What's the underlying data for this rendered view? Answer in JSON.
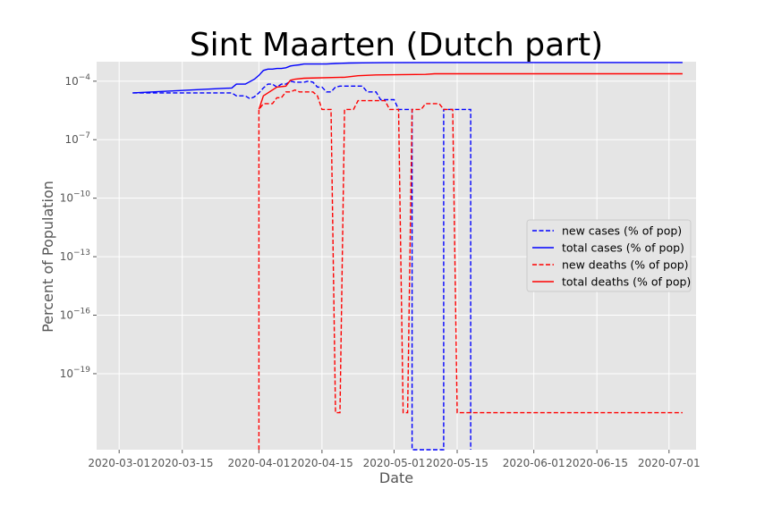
{
  "chart_data": {
    "type": "line",
    "title": "Sint Maarten (Dutch part)",
    "xlabel": "Date",
    "ylabel": "Percent of Population",
    "yscale": "log",
    "ylim_exp": [
      -22.9,
      -3.0
    ],
    "xlim": [
      "2020-02-25",
      "2020-07-07"
    ],
    "grid": true,
    "legend_position": "center-right",
    "x_ticks": [
      "2020-03-01",
      "2020-03-15",
      "2020-04-01",
      "2020-04-15",
      "2020-05-01",
      "2020-05-15",
      "2020-06-01",
      "2020-06-15",
      "2020-07-01"
    ],
    "y_ticks": [
      {
        "exp": -4,
        "label": "10",
        "sup": "−4"
      },
      {
        "exp": -7,
        "label": "10",
        "sup": "−7"
      },
      {
        "exp": -10,
        "label": "10",
        "sup": "−10"
      },
      {
        "exp": -13,
        "label": "10",
        "sup": "−13"
      },
      {
        "exp": -16,
        "label": "10",
        "sup": "−16"
      },
      {
        "exp": -19,
        "label": "10",
        "sup": "−19"
      }
    ],
    "series": [
      {
        "name": "new cases (% of pop)",
        "color": "#0000ff",
        "dash": "dashed",
        "points": [
          [
            "2020-03-04",
            -4.6
          ],
          [
            "2020-03-26",
            -4.6
          ],
          [
            "2020-03-27",
            -4.75
          ],
          [
            "2020-03-29",
            -4.75
          ],
          [
            "2020-03-30",
            -4.9
          ],
          [
            "2020-03-31",
            -4.8
          ],
          [
            "2020-04-01",
            -4.6
          ],
          [
            "2020-04-02",
            -4.35
          ],
          [
            "2020-04-03",
            -4.15
          ],
          [
            "2020-04-04",
            -4.15
          ],
          [
            "2020-04-05",
            -4.3
          ],
          [
            "2020-04-06",
            -4.15
          ],
          [
            "2020-04-07",
            -4.15
          ],
          [
            "2020-04-08",
            -4.0
          ],
          [
            "2020-04-09",
            -4.05
          ],
          [
            "2020-04-10",
            -4.05
          ],
          [
            "2020-04-11",
            -4.05
          ],
          [
            "2020-04-12",
            -4.0
          ],
          [
            "2020-04-13",
            -4.05
          ],
          [
            "2020-04-14",
            -4.3
          ],
          [
            "2020-04-15",
            -4.3
          ],
          [
            "2020-04-16",
            -4.55
          ],
          [
            "2020-04-17",
            -4.55
          ],
          [
            "2020-04-18",
            -4.3
          ],
          [
            "2020-04-19",
            -4.25
          ],
          [
            "2020-04-24",
            -4.25
          ],
          [
            "2020-04-25",
            -4.55
          ],
          [
            "2020-04-27",
            -4.55
          ],
          [
            "2020-04-28",
            -4.95
          ],
          [
            "2020-05-01",
            -4.95
          ],
          [
            "2020-05-02",
            -5.45
          ],
          [
            "2020-05-05",
            -5.45
          ],
          [
            "2020-05-05",
            -23.0
          ],
          [
            "2020-05-12",
            -23.0
          ],
          [
            "2020-05-12",
            -5.45
          ],
          [
            "2020-05-18",
            -5.45
          ],
          [
            "2020-05-18",
            -23.0
          ]
        ]
      },
      {
        "name": "total cases (% of pop)",
        "color": "#0000ff",
        "dash": "solid",
        "points": [
          [
            "2020-03-04",
            -4.6
          ],
          [
            "2020-03-26",
            -4.35
          ],
          [
            "2020-03-27",
            -4.15
          ],
          [
            "2020-03-29",
            -4.15
          ],
          [
            "2020-03-31",
            -3.9
          ],
          [
            "2020-04-01",
            -3.7
          ],
          [
            "2020-04-02",
            -3.45
          ],
          [
            "2020-04-03",
            -3.38
          ],
          [
            "2020-04-04",
            -3.38
          ],
          [
            "2020-04-05",
            -3.35
          ],
          [
            "2020-04-06",
            -3.35
          ],
          [
            "2020-04-07",
            -3.31
          ],
          [
            "2020-04-08",
            -3.22
          ],
          [
            "2020-04-09",
            -3.19
          ],
          [
            "2020-04-10",
            -3.16
          ],
          [
            "2020-04-11",
            -3.12
          ],
          [
            "2020-04-16",
            -3.12
          ],
          [
            "2020-04-18",
            -3.09
          ],
          [
            "2020-04-21",
            -3.07
          ],
          [
            "2020-04-24",
            -3.06
          ],
          [
            "2020-04-29",
            -3.05
          ],
          [
            "2020-05-10",
            -3.04
          ],
          [
            "2020-07-04",
            -3.04
          ]
        ]
      },
      {
        "name": "new deaths (% of pop)",
        "color": "#ff0000",
        "dash": "dashed",
        "points": [
          [
            "2020-04-01",
            -22.9
          ],
          [
            "2020-04-01",
            -5.45
          ],
          [
            "2020-04-02",
            -5.15
          ],
          [
            "2020-04-04",
            -5.15
          ],
          [
            "2020-04-05",
            -4.85
          ],
          [
            "2020-04-06",
            -4.85
          ],
          [
            "2020-04-07",
            -4.55
          ],
          [
            "2020-04-08",
            -4.55
          ],
          [
            "2020-04-09",
            -4.45
          ],
          [
            "2020-04-10",
            -4.55
          ],
          [
            "2020-04-13",
            -4.55
          ],
          [
            "2020-04-14",
            -4.75
          ],
          [
            "2020-04-15",
            -5.45
          ],
          [
            "2020-04-17",
            -5.45
          ],
          [
            "2020-04-18",
            -21.0
          ],
          [
            "2020-04-19",
            -21.0
          ],
          [
            "2020-04-20",
            -5.45
          ],
          [
            "2020-04-22",
            -5.45
          ],
          [
            "2020-04-23",
            -5.0
          ],
          [
            "2020-04-29",
            -5.0
          ],
          [
            "2020-04-30",
            -5.45
          ],
          [
            "2020-05-02",
            -5.45
          ],
          [
            "2020-05-03",
            -21.0
          ],
          [
            "2020-05-04",
            -21.0
          ],
          [
            "2020-05-05",
            -5.45
          ],
          [
            "2020-05-07",
            -5.45
          ],
          [
            "2020-05-08",
            -5.15
          ],
          [
            "2020-05-11",
            -5.15
          ],
          [
            "2020-05-12",
            -5.45
          ],
          [
            "2020-05-14",
            -5.45
          ],
          [
            "2020-05-15",
            -21.0
          ],
          [
            "2020-07-04",
            -21.0
          ]
        ]
      },
      {
        "name": "total deaths (% of pop)",
        "color": "#ff0000",
        "dash": "solid",
        "points": [
          [
            "2020-04-01",
            -5.45
          ],
          [
            "2020-04-02",
            -4.75
          ],
          [
            "2020-04-05",
            -4.3
          ],
          [
            "2020-04-07",
            -4.25
          ],
          [
            "2020-04-08",
            -3.95
          ],
          [
            "2020-04-09",
            -3.9
          ],
          [
            "2020-04-11",
            -3.85
          ],
          [
            "2020-04-20",
            -3.8
          ],
          [
            "2020-04-23",
            -3.72
          ],
          [
            "2020-04-27",
            -3.68
          ],
          [
            "2020-05-08",
            -3.65
          ],
          [
            "2020-05-10",
            -3.62
          ],
          [
            "2020-07-04",
            -3.62
          ]
        ]
      }
    ]
  }
}
